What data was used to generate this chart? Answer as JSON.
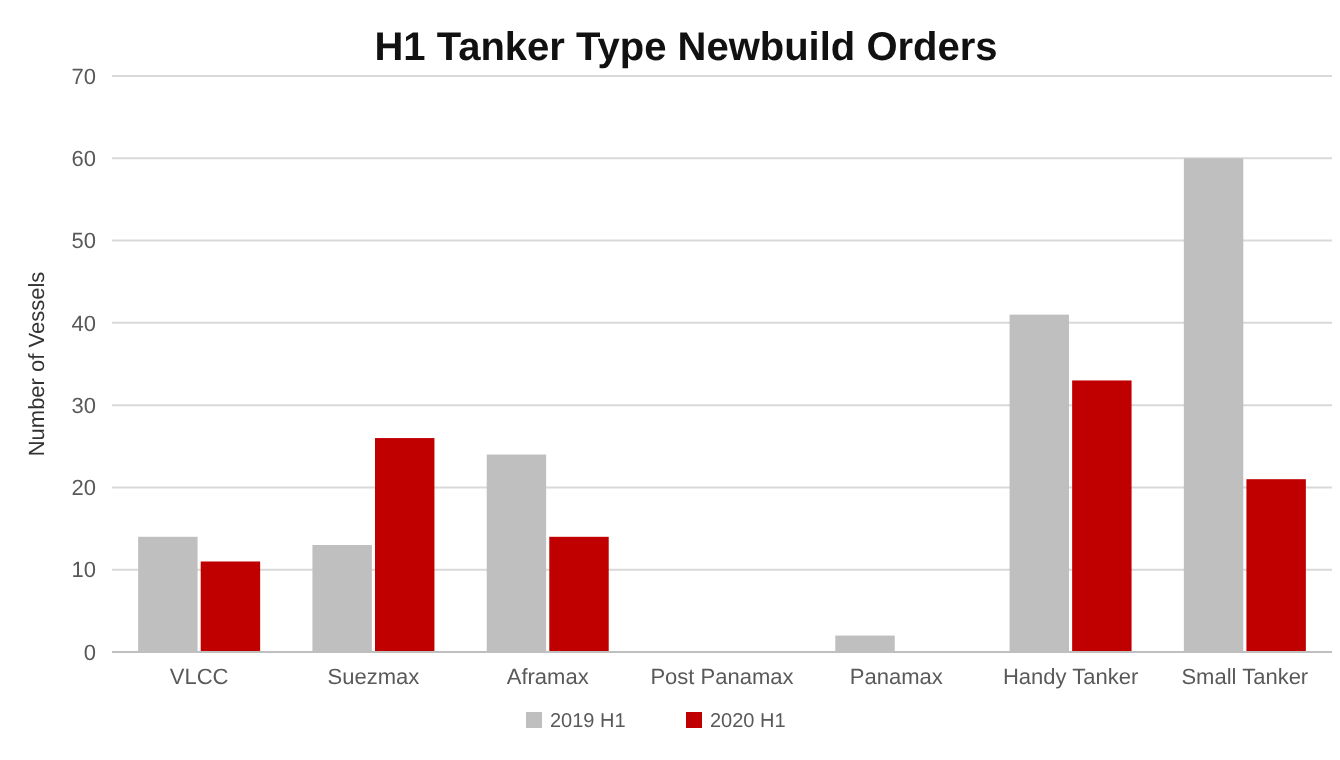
{
  "chart_data": {
    "type": "bar",
    "title": "H1 Tanker Type Newbuild Orders",
    "ylabel": "Number of Vessels",
    "categories": [
      "VLCC",
      "Suezmax",
      "Aframax",
      "Post Panamax",
      "Panamax",
      "Handy Tanker",
      "Small Tanker"
    ],
    "series": [
      {
        "name": "2019 H1",
        "color": "#bfbfbf",
        "values": [
          14,
          13,
          24,
          0,
          2,
          41,
          60
        ]
      },
      {
        "name": "2020 H1",
        "color": "#c00000",
        "values": [
          11,
          26,
          14,
          0,
          0,
          33,
          21
        ]
      }
    ],
    "ylim": [
      0,
      70
    ],
    "yticks": [
      0,
      10,
      20,
      30,
      40,
      50,
      60,
      70
    ],
    "grid": "y",
    "legend": "bottom"
  }
}
